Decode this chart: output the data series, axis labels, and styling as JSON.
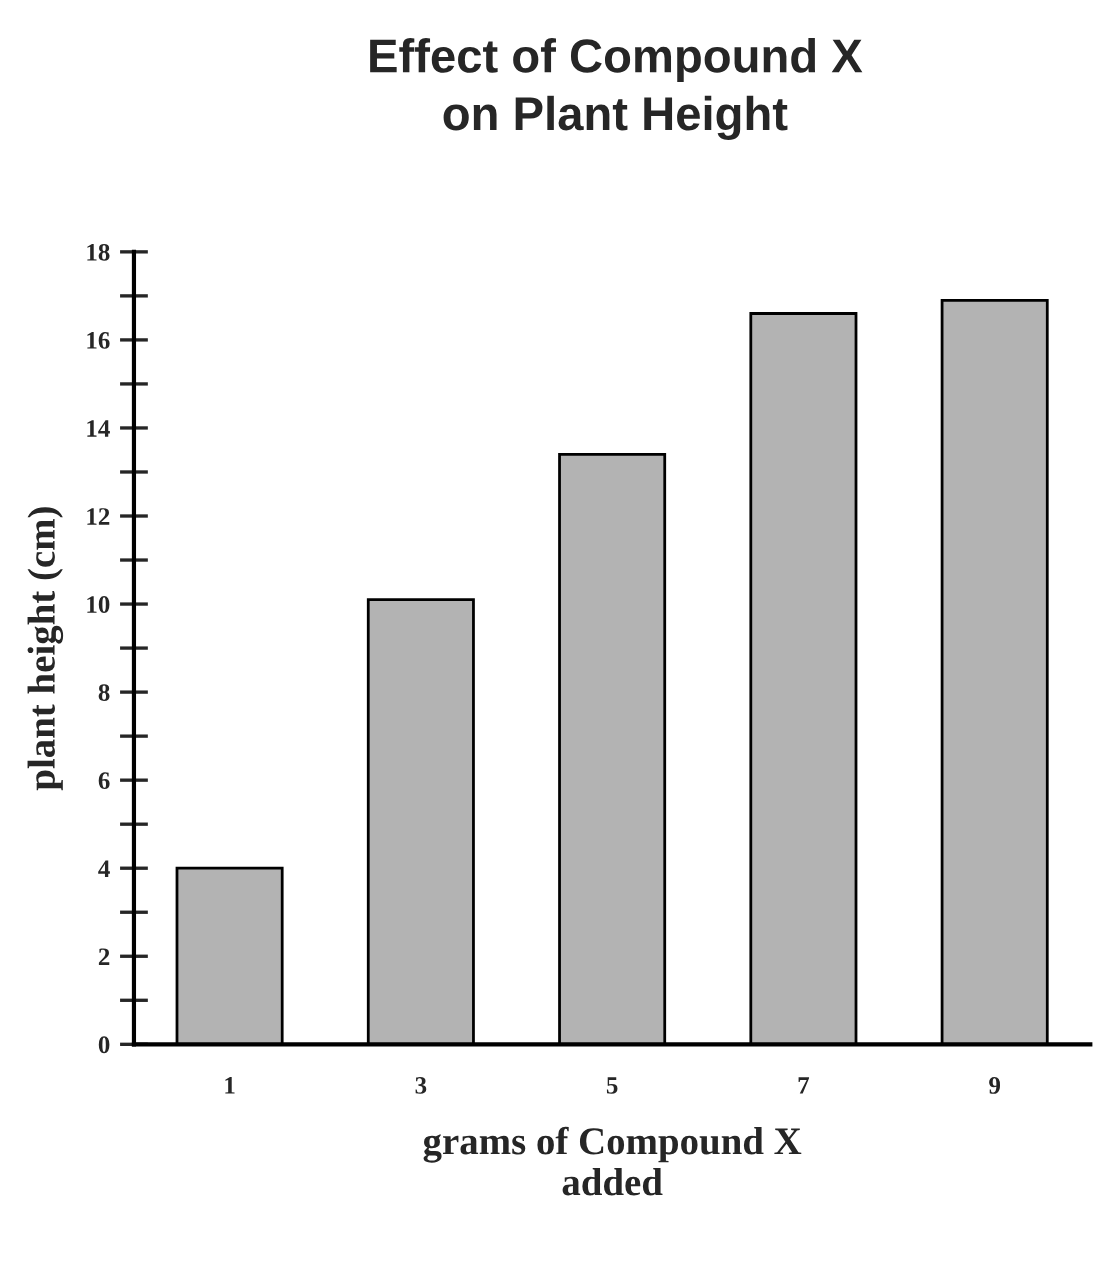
{
  "chart_data": {
    "type": "bar",
    "title": "Effect of Compound X\non Plant Height",
    "xlabel": "grams of Compound X\nadded",
    "ylabel": "plant height (cm)",
    "categories": [
      "1",
      "3",
      "5",
      "7",
      "9"
    ],
    "values": [
      4.0,
      10.1,
      13.4,
      16.6,
      16.9
    ],
    "color": "#b3b3b3",
    "ylim": [
      0,
      18
    ],
    "yticks": [
      0,
      {
        "value": 1,
        "label": null
      },
      2,
      {
        "value": 3,
        "label": null
      },
      4,
      {
        "value": 5,
        "label": null
      },
      6,
      {
        "value": 7,
        "label": null
      },
      8,
      {
        "value": 9,
        "label": null
      },
      10,
      {
        "value": 11,
        "label": null
      },
      12,
      {
        "value": 13,
        "label": null
      },
      14,
      {
        "value": 15,
        "label": null
      },
      16,
      {
        "value": 17,
        "label": null
      },
      18
    ],
    "grid": false
  }
}
